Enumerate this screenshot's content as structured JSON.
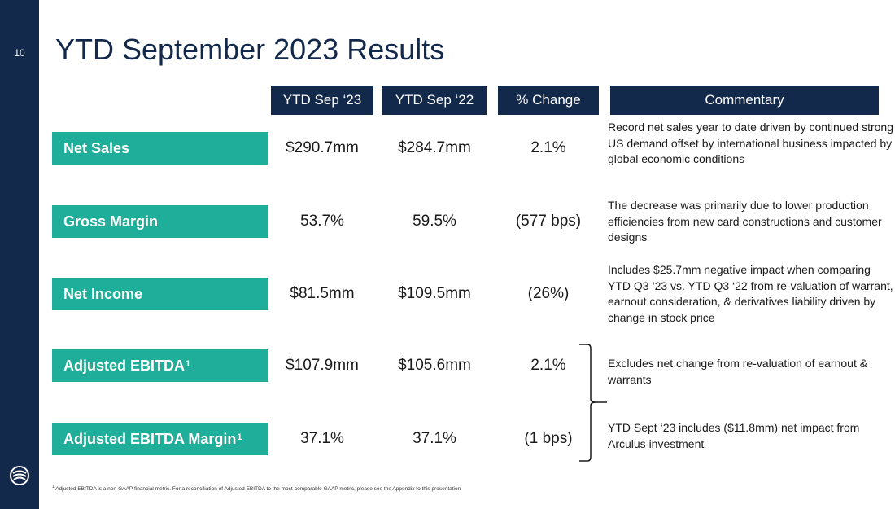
{
  "colors": {
    "navy": "#13294b",
    "teal": "#1fae99",
    "white": "#ffffff"
  },
  "slide": {
    "page_number": "10",
    "title": "YTD September 2023 Results"
  },
  "columns": {
    "ytd_23": "YTD Sep ‘23",
    "ytd_22": "YTD Sep ‘22",
    "pct_change": "% Change",
    "commentary": "Commentary"
  },
  "rows": [
    {
      "label": "Net Sales",
      "sup": "",
      "ytd_23": "$290.7mm",
      "ytd_22": "$284.7mm",
      "change": "2.1%",
      "comment": "Record net sales year to date driven by continued strong US demand offset by international business impacted by global economic conditions"
    },
    {
      "label": "Gross Margin",
      "sup": "",
      "ytd_23": "53.7%",
      "ytd_22": "59.5%",
      "change": "(577 bps)",
      "comment": "The decrease was primarily due to lower production efficiencies from new card constructions and customer designs"
    },
    {
      "label": "Net Income",
      "sup": "",
      "ytd_23": "$81.5mm",
      "ytd_22": "$109.5mm",
      "change": "(26%)",
      "comment": "Includes $25.7mm negative impact when comparing YTD Q3 ‘23 vs. YTD Q3 ‘22 from re-valuation of warrant, earnout consideration, & derivatives liability driven by change in stock price"
    },
    {
      "label": "Adjusted EBITDA",
      "sup": "1",
      "ytd_23": "$107.9mm",
      "ytd_22": "$105.6mm",
      "change": "2.1%"
    },
    {
      "label": "Adjusted EBITDA Margin",
      "sup": "1",
      "ytd_23": "37.1%",
      "ytd_22": "37.1%",
      "change": "(1 bps)"
    }
  ],
  "bracket_comments": [
    "Excludes net change from re-valuation of earnout & warrants",
    "YTD Sept ‘23 includes ($11.8mm) net impact from Arculus investment"
  ],
  "footnote": {
    "marker": "1",
    "text": "Adjusted EBITDA is a non-GAAP financial metric. For a reconciliation of Adjusted EBITDA to the most-comparable GAAP metric, please see the Appendix to this presentation"
  },
  "icons": {
    "logo": "company-logo-icon",
    "bracket": "right-brace-icon"
  }
}
